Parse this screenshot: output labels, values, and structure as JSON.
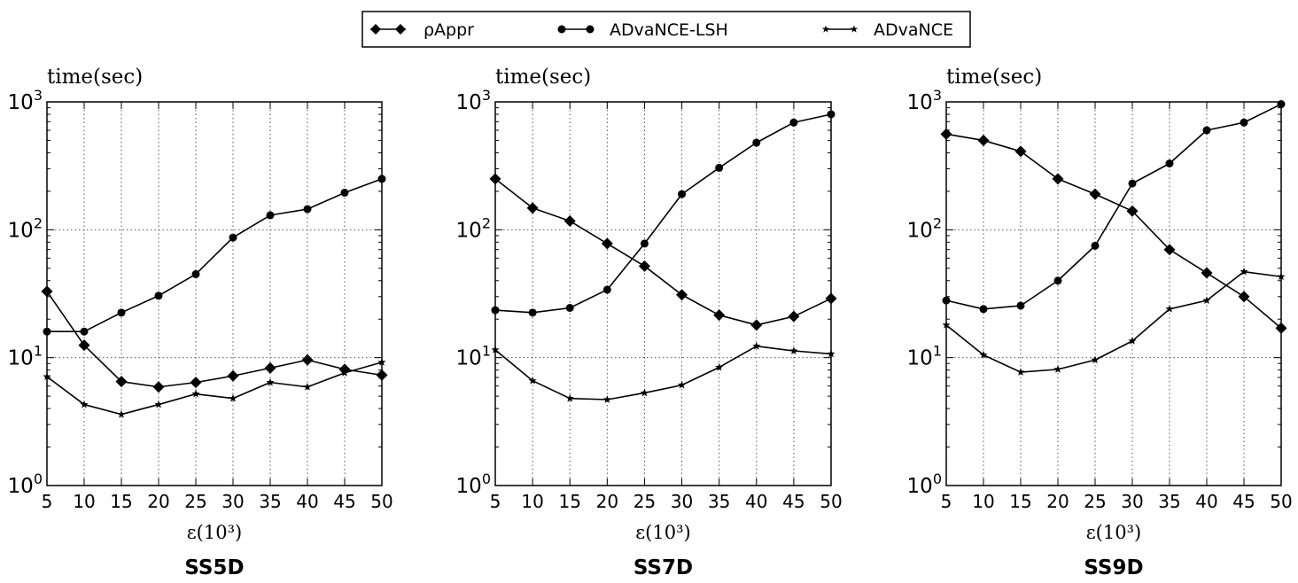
{
  "legend": {
    "items": [
      {
        "label": "ρAppr",
        "marker": "diamond"
      },
      {
        "label": "ADvaNCE-LSH",
        "marker": "circle"
      },
      {
        "label": "ADvaNCE",
        "marker": "star"
      }
    ],
    "placement": "top-center"
  },
  "chart_data": [
    {
      "type": "line",
      "title": "SS5D",
      "xlabel": "ε(10³)",
      "ylabel": "time(sec)",
      "yscale": "log",
      "ylim": [
        1,
        1000
      ],
      "xlim": [
        5,
        50
      ],
      "grid": true,
      "x": [
        5,
        10,
        15,
        20,
        25,
        30,
        35,
        40,
        45,
        50
      ],
      "xtick_labels": [
        "5",
        "10",
        "15",
        "20",
        "25",
        "30",
        "35",
        "40",
        "45",
        "50"
      ],
      "ytick_labels": [
        {
          "base": "10",
          "exp": "0"
        },
        {
          "base": "10",
          "exp": "1"
        },
        {
          "base": "10",
          "exp": "2"
        },
        {
          "base": "10",
          "exp": "3"
        }
      ],
      "series": [
        {
          "name": "ρAppr",
          "marker": "diamond",
          "values": [
            33,
            12.5,
            6.5,
            5.9,
            6.4,
            7.2,
            8.3,
            9.6,
            8.1,
            7.3
          ]
        },
        {
          "name": "ADvaNCE-LSH",
          "marker": "circle",
          "values": [
            16,
            16,
            22.5,
            30.5,
            45,
            87,
            130,
            145,
            195,
            250
          ]
        },
        {
          "name": "ADvaNCE",
          "marker": "star",
          "values": [
            7.1,
            4.3,
            3.6,
            4.3,
            5.2,
            4.8,
            6.4,
            5.9,
            7.6,
            9.2
          ]
        }
      ]
    },
    {
      "type": "line",
      "title": "SS7D",
      "xlabel": "ε(10³)",
      "ylabel": "time(sec)",
      "yscale": "log",
      "ylim": [
        1,
        1000
      ],
      "xlim": [
        5,
        50
      ],
      "grid": true,
      "x": [
        5,
        10,
        15,
        20,
        25,
        30,
        35,
        40,
        45,
        50
      ],
      "xtick_labels": [
        "5",
        "10",
        "15",
        "20",
        "25",
        "30",
        "35",
        "40",
        "45",
        "50"
      ],
      "ytick_labels": [
        {
          "base": "10",
          "exp": "0"
        },
        {
          "base": "10",
          "exp": "1"
        },
        {
          "base": "10",
          "exp": "2"
        },
        {
          "base": "10",
          "exp": "3"
        }
      ],
      "series": [
        {
          "name": "ρAppr",
          "marker": "diamond",
          "values": [
            250,
            148,
            117,
            78,
            52,
            31,
            21.5,
            18,
            21,
            29
          ]
        },
        {
          "name": "ADvaNCE-LSH",
          "marker": "circle",
          "values": [
            23.5,
            22.5,
            24.5,
            34,
            78,
            190,
            305,
            480,
            690,
            800
          ]
        },
        {
          "name": "ADvaNCE",
          "marker": "star",
          "values": [
            11.5,
            6.6,
            4.8,
            4.7,
            5.3,
            6.1,
            8.4,
            12.3,
            11.3,
            10.7
          ]
        }
      ]
    },
    {
      "type": "line",
      "title": "SS9D",
      "xlabel": "ε(10³)",
      "ylabel": "time(sec)",
      "yscale": "log",
      "ylim": [
        1,
        1000
      ],
      "xlim": [
        5,
        50
      ],
      "grid": true,
      "x": [
        5,
        10,
        15,
        20,
        25,
        30,
        35,
        40,
        45,
        50
      ],
      "xtick_labels": [
        "5",
        "10",
        "15",
        "20",
        "25",
        "30",
        "35",
        "40",
        "45",
        "50"
      ],
      "ytick_labels": [
        {
          "base": "10",
          "exp": "0"
        },
        {
          "base": "10",
          "exp": "1"
        },
        {
          "base": "10",
          "exp": "2"
        },
        {
          "base": "10",
          "exp": "3"
        }
      ],
      "series": [
        {
          "name": "ρAppr",
          "marker": "diamond",
          "values": [
            560,
            500,
            410,
            250,
            190,
            140,
            70,
            46,
            30,
            17
          ]
        },
        {
          "name": "ADvaNCE-LSH",
          "marker": "circle",
          "values": [
            28,
            24,
            25.5,
            40,
            75,
            230,
            330,
            600,
            690,
            960
          ]
        },
        {
          "name": "ADvaNCE",
          "marker": "star",
          "values": [
            18,
            10.5,
            7.7,
            8.1,
            9.6,
            13.5,
            24,
            28,
            47,
            43
          ]
        }
      ]
    }
  ]
}
